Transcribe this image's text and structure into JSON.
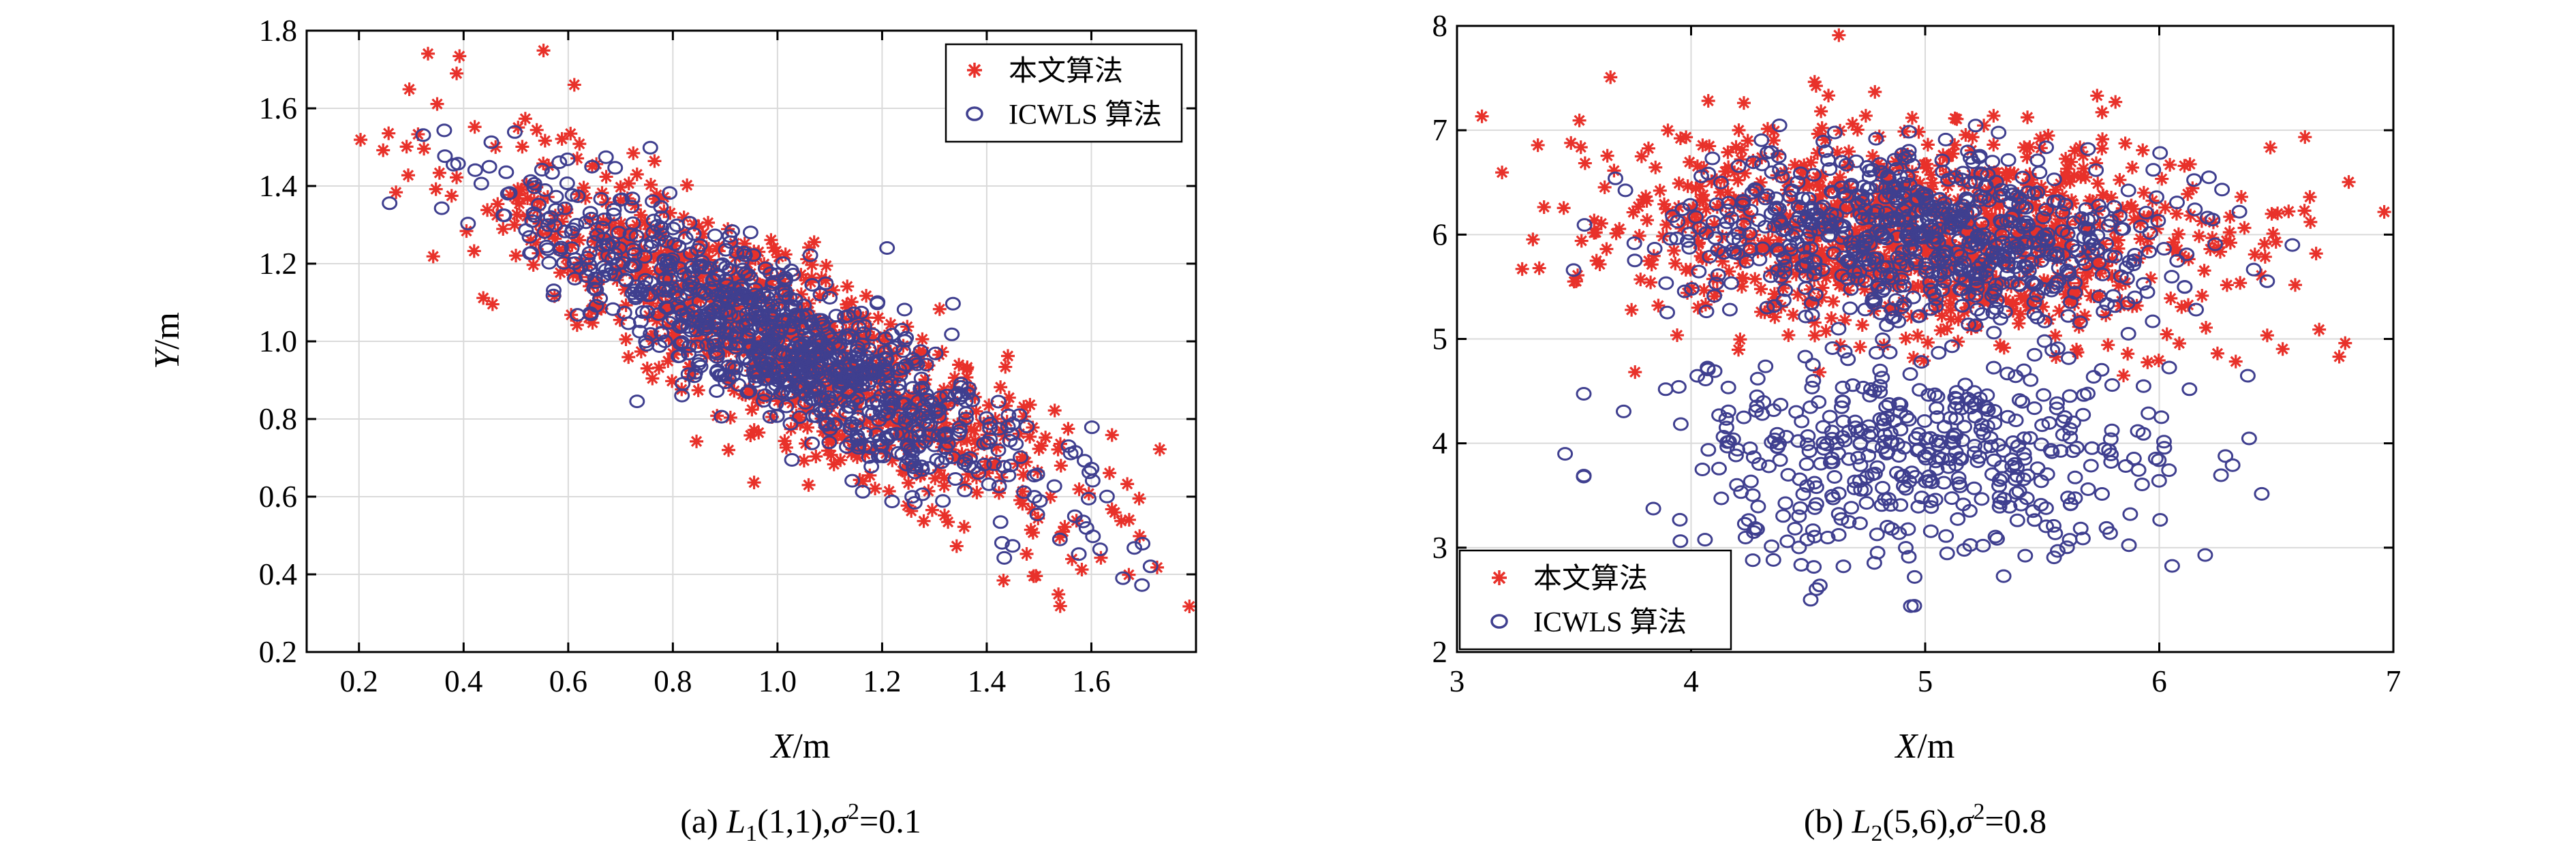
{
  "chart_data": [
    {
      "type": "scatter",
      "panel": "a",
      "caption": {
        "prefix": "(a) ",
        "var": "L",
        "sub": "1",
        "args": "(1,1),",
        "sigma": "σ",
        "sup": "2",
        "tail": "=0.1"
      },
      "xlabel": {
        "var": "X",
        "unit": "/m"
      },
      "ylabel": {
        "var": "Y",
        "unit": "/m"
      },
      "xlim": [
        0.1,
        1.8
      ],
      "ylim": [
        0.2,
        1.8
      ],
      "xticks": [
        "0.2",
        "0.4",
        "0.6",
        "0.8",
        "1.0",
        "1.2",
        "1.4",
        "1.6"
      ],
      "xtick_values": [
        0.2,
        0.4,
        0.6,
        0.8,
        1.0,
        1.2,
        1.4,
        1.6
      ],
      "yticks": [
        "0.2",
        "0.4",
        "0.6",
        "0.8",
        "1.0",
        "1.2",
        "1.4",
        "1.6",
        "1.8"
      ],
      "ytick_values": [
        0.2,
        0.4,
        0.6,
        0.8,
        1.0,
        1.2,
        1.4,
        1.6,
        1.8
      ],
      "grid": true,
      "legend": {
        "placement": "top-right",
        "entries": [
          "本文算法",
          "ICWLS 算法"
        ]
      },
      "series": [
        {
          "name": "本文算法",
          "marker": "asterisk",
          "color": "#e8312a",
          "clusters": [
            {
              "center": [
                1.0,
                1.0
              ],
              "sx": 0.29,
              "sy": 0.24,
              "rho": -0.86,
              "count": 950
            }
          ]
        },
        {
          "name": "ICWLS 算法",
          "marker": "circle",
          "color": "#3f3f8f",
          "clusters": [
            {
              "center": [
                1.0,
                1.0
              ],
              "sx": 0.24,
              "sy": 0.2,
              "rho": -0.86,
              "count": 950
            }
          ]
        }
      ]
    },
    {
      "type": "scatter",
      "panel": "b",
      "caption": {
        "prefix": "(b) ",
        "var": "L",
        "sub": "2",
        "args": "(5,6),",
        "sigma": "σ",
        "sup": "2",
        "tail": "=0.8"
      },
      "xlabel": {
        "var": "X",
        "unit": "/m"
      },
      "ylabel": {
        "var": "",
        "unit": ""
      },
      "xlim": [
        3,
        7
      ],
      "ylim": [
        2,
        8
      ],
      "xticks": [
        "3",
        "4",
        "5",
        "6",
        "7"
      ],
      "xtick_values": [
        3,
        4,
        5,
        6,
        7
      ],
      "yticks": [
        "2",
        "3",
        "4",
        "5",
        "6",
        "7",
        "8"
      ],
      "ytick_values": [
        2,
        3,
        4,
        5,
        6,
        7,
        8
      ],
      "grid": true,
      "legend": {
        "placement": "bottom-left",
        "entries": [
          "本文算法",
          "ICWLS 算法"
        ]
      },
      "series": [
        {
          "name": "本文算法",
          "marker": "asterisk",
          "color": "#e8312a",
          "clusters": [
            {
              "center": [
                5.0,
                6.0
              ],
              "sx": 0.65,
              "sy": 0.5,
              "rho": -0.1,
              "count": 1000
            }
          ]
        },
        {
          "name": "ICWLS 算法",
          "marker": "circle",
          "color": "#3f3f8f",
          "clusters": [
            {
              "center": [
                5.0,
                6.0
              ],
              "sx": 0.5,
              "sy": 0.4,
              "rho": -0.1,
              "count": 700
            },
            {
              "center": [
                5.0,
                3.9
              ],
              "sx": 0.55,
              "sy": 0.55,
              "rho": 0.0,
              "count": 480
            }
          ]
        }
      ]
    }
  ]
}
